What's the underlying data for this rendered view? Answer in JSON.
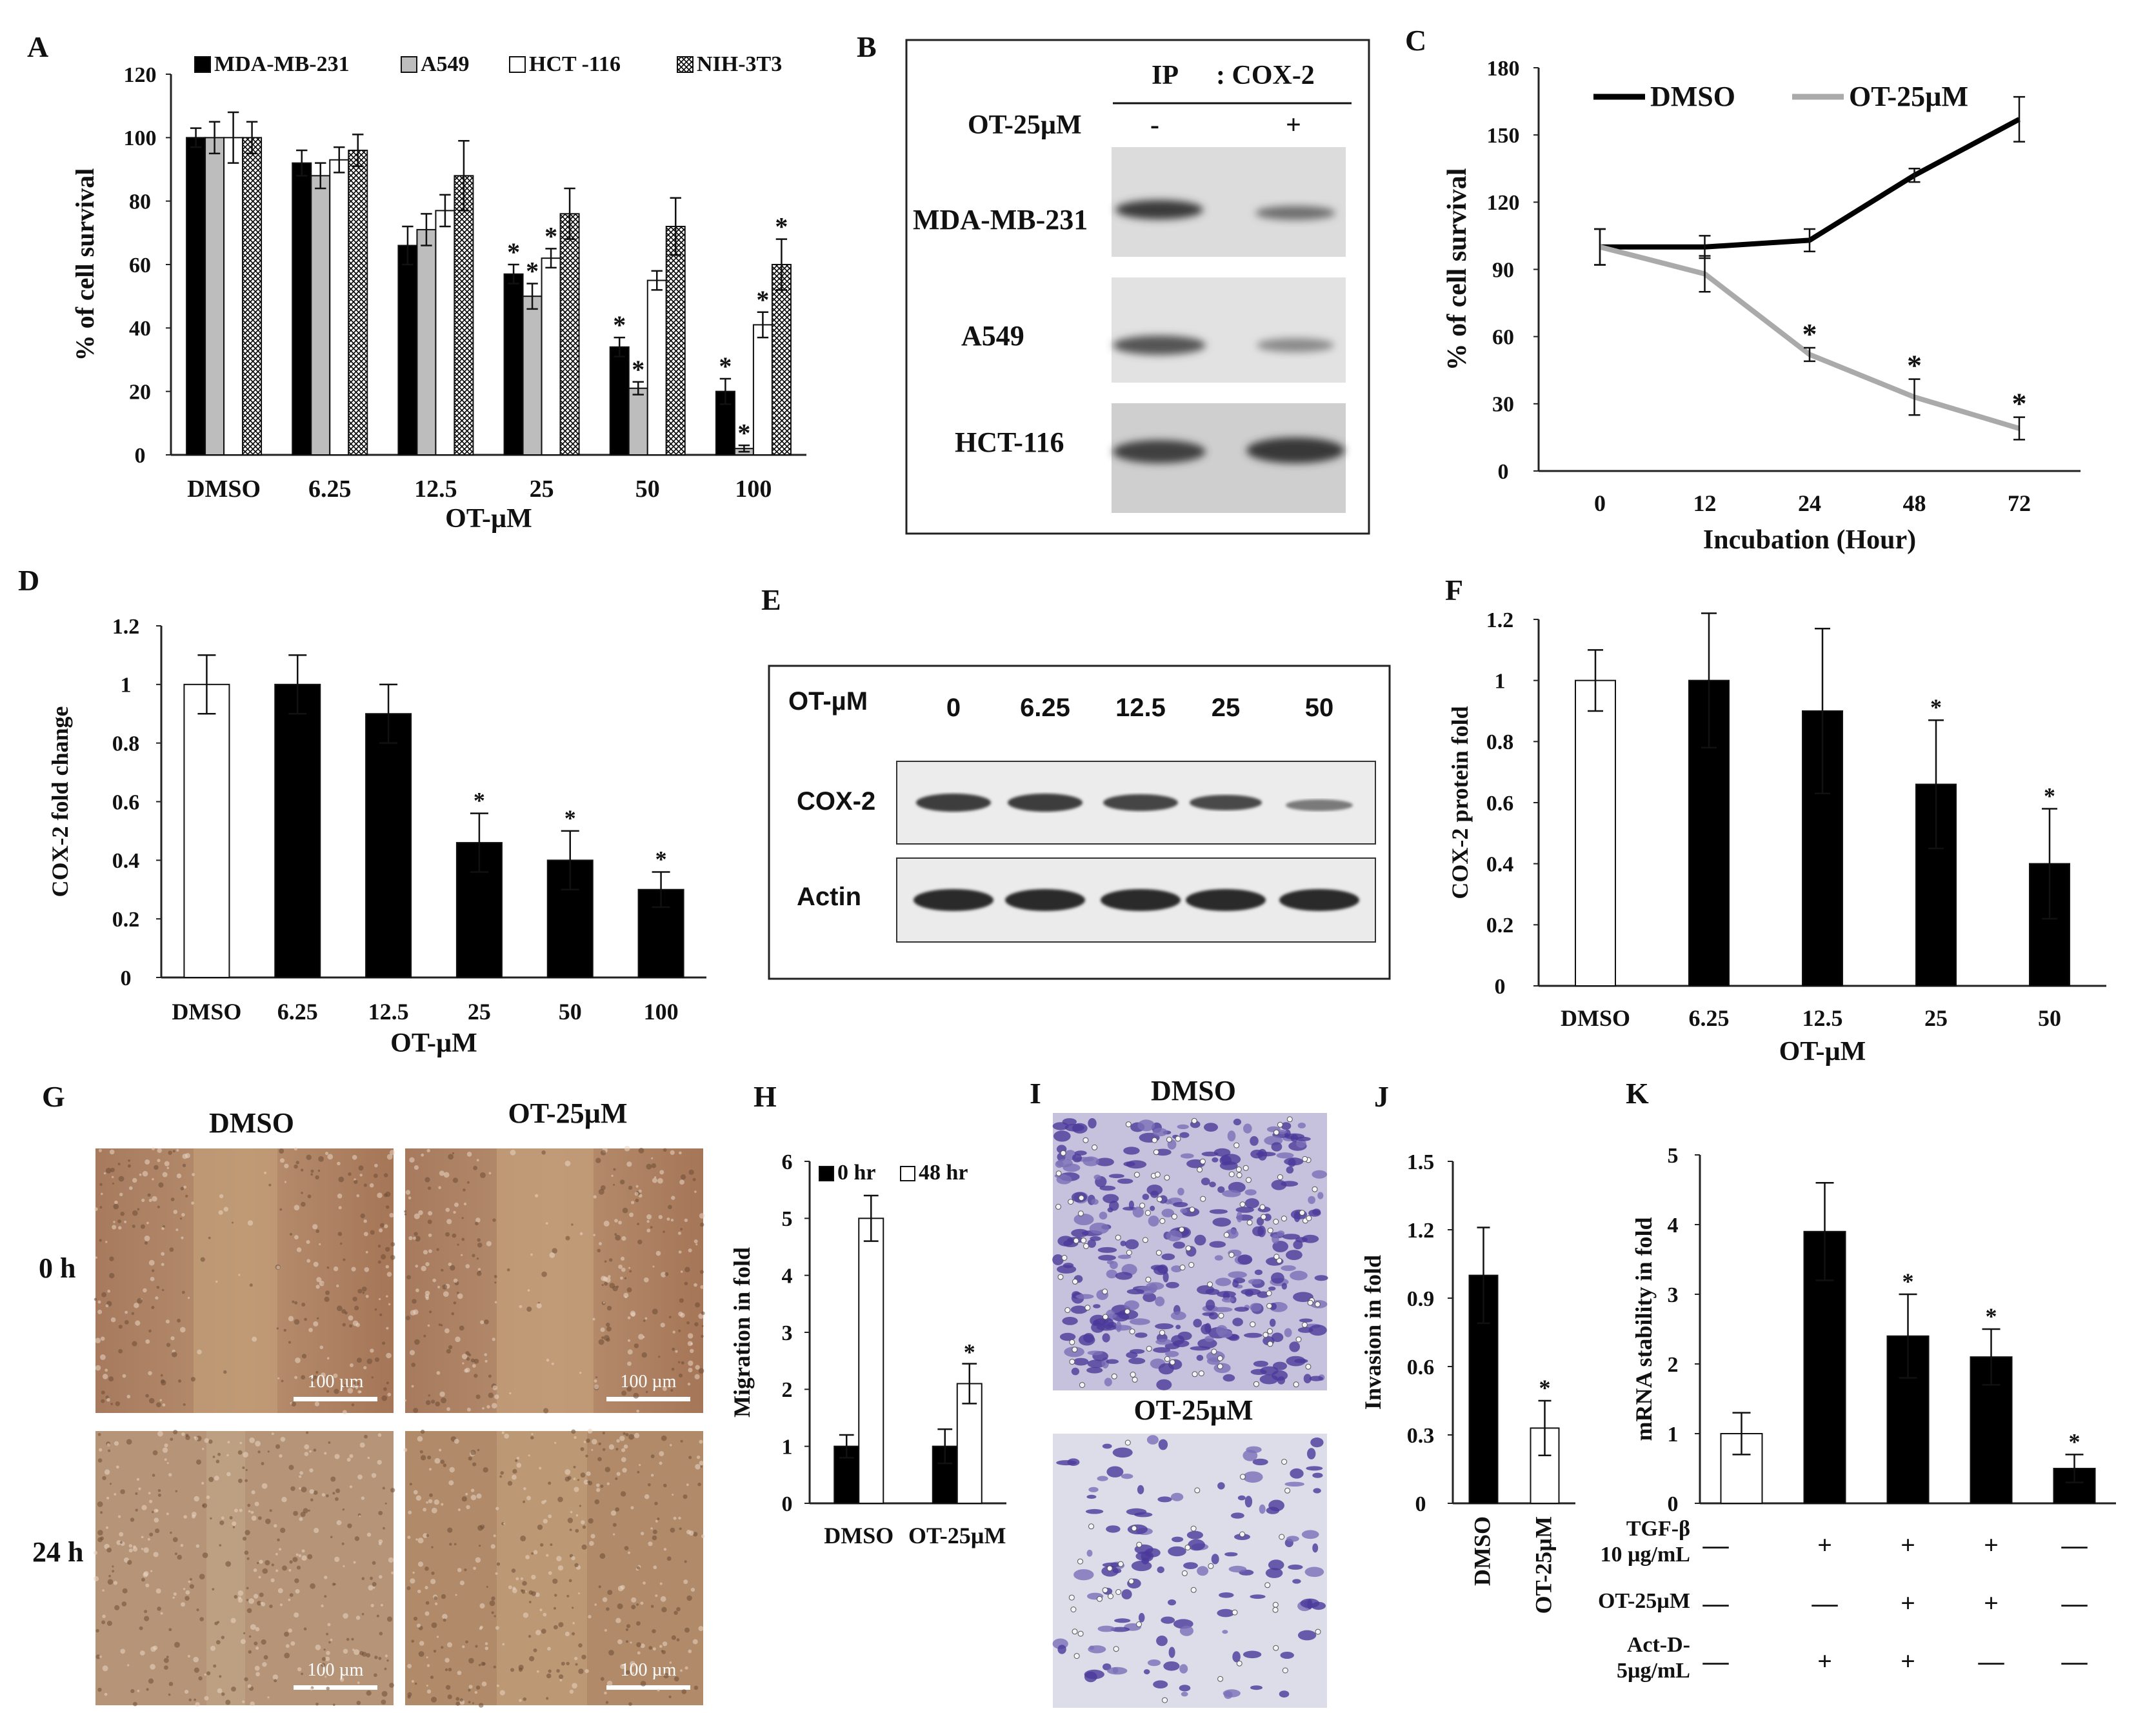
{
  "panel_letters": [
    "A",
    "B",
    "C",
    "D",
    "E",
    "F",
    "G",
    "H",
    "I",
    "J",
    "K"
  ],
  "colors": {
    "black": "#000000",
    "white": "#ffffff",
    "gray": "#bdbdbd",
    "line_gray": "#aaaaaa"
  },
  "chart_data": [
    {
      "panel": "A",
      "type": "bar",
      "xlabel": "OT-µM",
      "ylabel": "% of cell survival",
      "categories": [
        "DMSO",
        "6.25",
        "12.5",
        "25",
        "50",
        "100"
      ],
      "ylim": [
        0,
        120
      ],
      "yticks": [
        0,
        20,
        40,
        60,
        80,
        100,
        120
      ],
      "legend_position": "top",
      "series": [
        {
          "name": "MDA-MB-231",
          "fill": "black",
          "values": [
            100,
            92,
            66,
            57,
            34,
            20
          ],
          "errors": [
            3,
            4,
            6,
            3,
            3,
            4
          ],
          "sig": [
            false,
            false,
            false,
            true,
            true,
            true
          ]
        },
        {
          "name": "A549",
          "fill": "gray",
          "values": [
            100,
            88,
            71,
            50,
            21,
            2
          ],
          "errors": [
            5,
            4,
            5,
            4,
            2,
            1
          ],
          "sig": [
            false,
            false,
            false,
            true,
            true,
            true
          ]
        },
        {
          "name": "HCT -116",
          "fill": "white",
          "values": [
            100,
            93,
            77,
            62,
            55,
            41
          ],
          "errors": [
            8,
            4,
            5,
            3,
            3,
            4
          ],
          "sig": [
            false,
            false,
            false,
            true,
            false,
            true
          ]
        },
        {
          "name": "NIH-3T3",
          "fill": "hatch",
          "values": [
            100,
            96,
            88,
            76,
            72,
            60
          ],
          "errors": [
            5,
            5,
            11,
            8,
            9,
            8
          ],
          "sig": [
            false,
            false,
            false,
            false,
            false,
            true
          ]
        }
      ]
    },
    {
      "panel": "C",
      "type": "line",
      "xlabel": "Incubation (Hour)",
      "ylabel": "% of cell survival",
      "categories": [
        "0",
        "12",
        "24",
        "48",
        "72"
      ],
      "ylim": [
        0,
        180
      ],
      "yticks": [
        0,
        30,
        60,
        90,
        120,
        150,
        180
      ],
      "series": [
        {
          "name": "DMSO",
          "color": "#000000",
          "values": [
            100,
            100,
            103,
            132,
            157
          ],
          "errors": [
            8,
            5,
            5,
            3,
            10
          ],
          "sig": [
            false,
            false,
            false,
            false,
            false
          ]
        },
        {
          "name": "OT-25µM",
          "color": "#aaaaaa",
          "values": [
            100,
            88,
            52,
            33,
            19
          ],
          "errors": [
            8,
            8,
            3,
            8,
            5
          ],
          "sig": [
            false,
            false,
            true,
            true,
            true
          ]
        }
      ]
    },
    {
      "panel": "D",
      "type": "bar",
      "xlabel": "OT-µM",
      "ylabel": "COX-2  fold  change",
      "categories": [
        "DMSO",
        "6.25",
        "12.5",
        "25",
        "50",
        "100"
      ],
      "ylim": [
        0,
        1.2
      ],
      "yticks": [
        "0",
        "0.2",
        "0.4",
        "0.6",
        "0.8",
        "1",
        "1.2"
      ],
      "values": [
        1,
        1,
        0.9,
        0.46,
        0.4,
        0.3
      ],
      "errors": [
        0.1,
        0.1,
        0.1,
        0.1,
        0.1,
        0.06
      ],
      "fills": [
        "white",
        "black",
        "black",
        "black",
        "black",
        "black"
      ],
      "sig": [
        false,
        false,
        false,
        true,
        true,
        true
      ]
    },
    {
      "panel": "F",
      "type": "bar",
      "xlabel": "OT-µM",
      "ylabel": "COX-2  protein  fold",
      "categories": [
        "DMSO",
        "6.25",
        "12.5",
        "25",
        "50"
      ],
      "ylim": [
        0,
        1.2
      ],
      "yticks": [
        "0",
        "0.2",
        "0.4",
        "0.6",
        "0.8",
        "1",
        "1.2"
      ],
      "values": [
        1,
        1,
        0.9,
        0.66,
        0.4
      ],
      "errors": [
        0.1,
        0.22,
        0.27,
        0.21,
        0.18
      ],
      "fills": [
        "white",
        "black",
        "black",
        "black",
        "black"
      ],
      "sig": [
        false,
        false,
        false,
        true,
        true
      ]
    },
    {
      "panel": "H",
      "type": "bar",
      "ylabel": "Migration  in  fold",
      "categories": [
        "DMSO",
        "OT-25µM"
      ],
      "ylim": [
        0,
        6
      ],
      "yticks": [
        0,
        1,
        2,
        3,
        4,
        5,
        6
      ],
      "series": [
        {
          "name": "0 hr",
          "fill": "black",
          "values": [
            1,
            1
          ],
          "errors": [
            0.2,
            0.3
          ],
          "sig": [
            false,
            false
          ]
        },
        {
          "name": "48 hr",
          "fill": "white",
          "values": [
            5,
            2.1
          ],
          "errors": [
            0.4,
            0.35
          ],
          "sig": [
            false,
            true
          ]
        }
      ]
    },
    {
      "panel": "J",
      "type": "bar",
      "ylabel": "Invasion  in fold",
      "categories": [
        "DMSO",
        "OT-25µM"
      ],
      "ylim": [
        0,
        1.5
      ],
      "yticks": [
        "0",
        "0.3",
        "0.6",
        "0.9",
        "1.2",
        "1.5"
      ],
      "values": [
        1,
        0.33
      ],
      "errors": [
        0.21,
        0.12
      ],
      "fills": [
        "black",
        "white"
      ],
      "sig": [
        false,
        true
      ]
    },
    {
      "panel": "K",
      "type": "bar",
      "ylabel": "mRNA  stability  in fold",
      "ylim": [
        0,
        5
      ],
      "yticks": [
        0,
        1,
        2,
        3,
        4,
        5
      ],
      "values": [
        1,
        3.9,
        2.4,
        2.1,
        0.5
      ],
      "errors": [
        0.3,
        0.7,
        0.6,
        0.4,
        0.2
      ],
      "fills": [
        "white",
        "black",
        "black",
        "black",
        "black"
      ],
      "sig": [
        false,
        false,
        true,
        true,
        true
      ],
      "conditions": [
        {
          "label": "TGF-β",
          "label2": "10 µg/mL",
          "marks": [
            "—",
            "+",
            "+",
            "+",
            "—"
          ]
        },
        {
          "label": "OT-25µM",
          "label2": "",
          "marks": [
            "—",
            "—",
            "+",
            "+",
            "—"
          ]
        },
        {
          "label": "Act-D-",
          "label2": "5µg/mL",
          "marks": [
            "—",
            "+",
            "+",
            "—",
            "—"
          ]
        }
      ]
    }
  ],
  "blotB": {
    "ip_label": "IP",
    "ip_target": ": COX-2",
    "treatment": "OT-25µM",
    "lanes": [
      "-",
      "+"
    ],
    "rows": [
      "MDA-MB-231",
      "A549",
      "HCT-116"
    ]
  },
  "blotE": {
    "treatment": "OT-µM",
    "lanes": [
      "0",
      "6.25",
      "12.5",
      "25",
      "50"
    ],
    "rows": [
      "COX-2",
      "Actin"
    ]
  },
  "micrographG": {
    "cols": [
      "DMSO",
      "OT-25µM"
    ],
    "rows": [
      "0 h",
      "24 h"
    ],
    "scalebar": "100 µm"
  },
  "micrographI": {
    "top": "DMSO",
    "bottom": "OT-25µM"
  }
}
